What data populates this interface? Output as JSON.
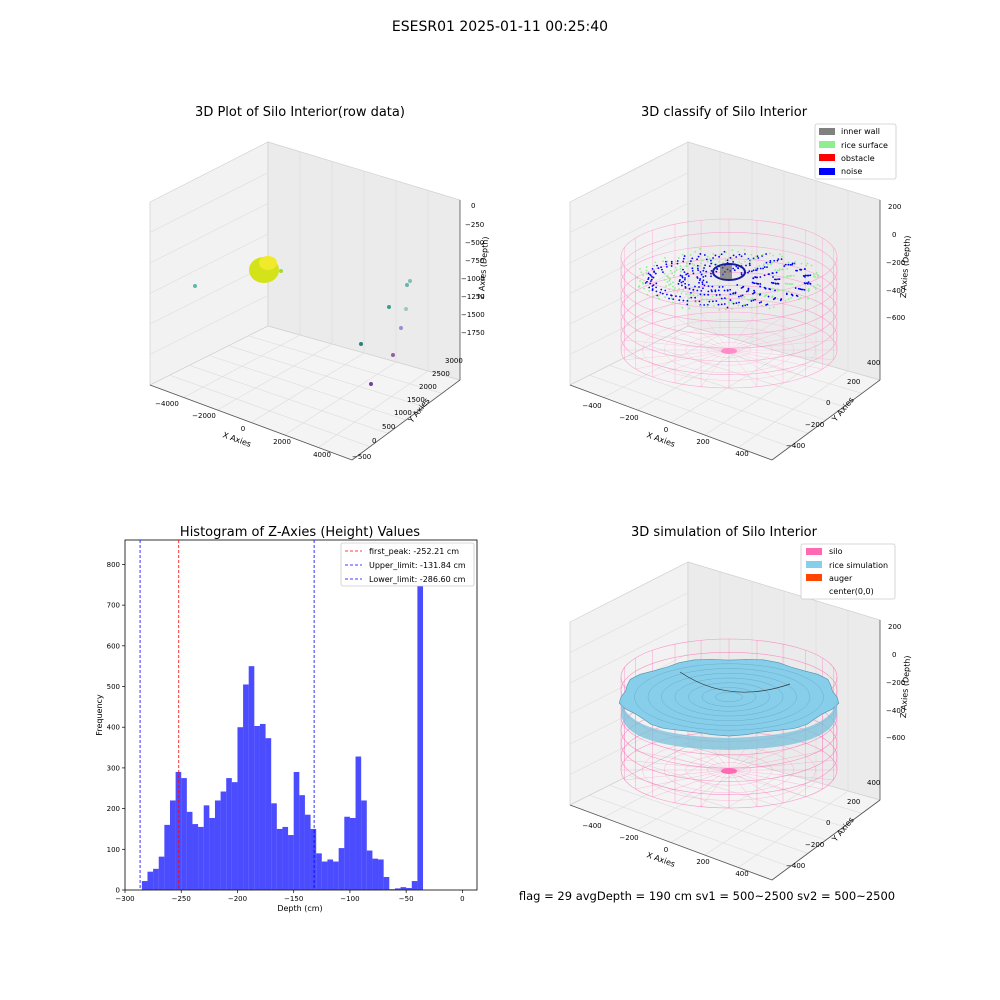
{
  "figure": {
    "suptitle": "ESESR01 2025-01-11 00:25:40",
    "footer": "flag = 29  avgDepth = 190 cm  sv1 = 500~2500  sv2 = 500~2500"
  },
  "panels": {
    "raw": {
      "title": "3D Plot of Silo Interior(row data)",
      "xlabel": "X Axies",
      "ylabel": "Y Axies",
      "zlabel": "Z Axies (Depth)",
      "xticks": [
        "−4000",
        "−2000",
        "0",
        "2000",
        "4000"
      ],
      "yticks": [
        "−500",
        "0",
        "500",
        "1000",
        "1500",
        "2000",
        "2500",
        "3000"
      ],
      "zticks": [
        "0",
        "−250",
        "−500",
        "−750",
        "−1000",
        "−1250",
        "−1500",
        "−1750"
      ]
    },
    "classify": {
      "title": "3D classify of Silo Interior",
      "xlabel": "X Axies",
      "ylabel": "Y Axies",
      "zlabel": "Z Axies (Depth)",
      "xticks": [
        "−400",
        "−200",
        "0",
        "200",
        "400"
      ],
      "yticks": [
        "−400",
        "−200",
        "0",
        "200",
        "400"
      ],
      "zticks": [
        "200",
        "0",
        "−200",
        "−400",
        "−600"
      ],
      "legend": [
        {
          "label": "inner wall",
          "color": "#808080"
        },
        {
          "label": "rice surface",
          "color": "#90ee90"
        },
        {
          "label": "obstacle",
          "color": "#ff0000"
        },
        {
          "label": "noise",
          "color": "#0000ff"
        }
      ]
    },
    "simulation": {
      "title": "3D simulation of Silo Interior",
      "xlabel": "X Axies",
      "ylabel": "Y Axies",
      "zlabel": "Z Axies (Depth)",
      "xticks": [
        "−400",
        "−200",
        "0",
        "200",
        "400"
      ],
      "yticks": [
        "−400",
        "−200",
        "0",
        "200",
        "400"
      ],
      "zticks": [
        "200",
        "0",
        "−200",
        "−400",
        "−600"
      ],
      "legend": [
        {
          "label": "silo",
          "color": "#ff69b4"
        },
        {
          "label": "rice simulation",
          "color": "#87ceeb"
        },
        {
          "label": "auger",
          "color": "#ff4500"
        },
        {
          "label": "center(0,0)",
          "color": "none"
        }
      ]
    }
  },
  "chart_data": {
    "type": "bar",
    "title": "Histogram of Z-Axies (Height) Values",
    "xlabel": "Depth (cm)",
    "ylabel": "Frequency",
    "xlim": [
      -300,
      13
    ],
    "ylim": [
      0,
      860
    ],
    "xticks": [
      -300,
      -250,
      -200,
      -150,
      -100,
      -50,
      0
    ],
    "yticks": [
      0,
      100,
      200,
      300,
      400,
      500,
      600,
      700,
      800
    ],
    "color": "#0000ff",
    "bin_width": 5,
    "bins_start": [
      -290,
      -285,
      -280,
      -275,
      -270,
      -265,
      -260,
      -255,
      -250,
      -245,
      -240,
      -235,
      -230,
      -225,
      -220,
      -215,
      -210,
      -205,
      -200,
      -195,
      -190,
      -185,
      -180,
      -175,
      -170,
      -165,
      -160,
      -155,
      -150,
      -145,
      -140,
      -135,
      -130,
      -125,
      -120,
      -115,
      -110,
      -105,
      -100,
      -95,
      -90,
      -85,
      -80,
      -75,
      -70,
      -65,
      -60,
      -55,
      -50,
      -45,
      -40,
      -35,
      -30,
      -25,
      -20,
      -15,
      -10,
      -5,
      0
    ],
    "values": [
      0,
      22,
      45,
      52,
      82,
      160,
      220,
      290,
      275,
      192,
      162,
      155,
      208,
      177,
      220,
      242,
      275,
      265,
      400,
      505,
      550,
      403,
      408,
      373,
      213,
      150,
      155,
      135,
      290,
      233,
      185,
      150,
      90,
      70,
      75,
      70,
      103,
      180,
      177,
      328,
      220,
      97,
      77,
      75,
      32,
      2,
      4,
      7,
      5,
      22,
      815,
      0,
      0,
      0,
      0,
      0,
      0,
      0,
      0
    ],
    "vlines": [
      {
        "label": "first_peak: -252.21 cm",
        "x": -252.21,
        "color": "#ff0000"
      },
      {
        "label": "Upper_limit: -131.84 cm",
        "x": -131.84,
        "color": "#0000ff"
      },
      {
        "label": "Lower_limit: -286.60 cm",
        "x": -286.6,
        "color": "#0000ff"
      }
    ]
  }
}
